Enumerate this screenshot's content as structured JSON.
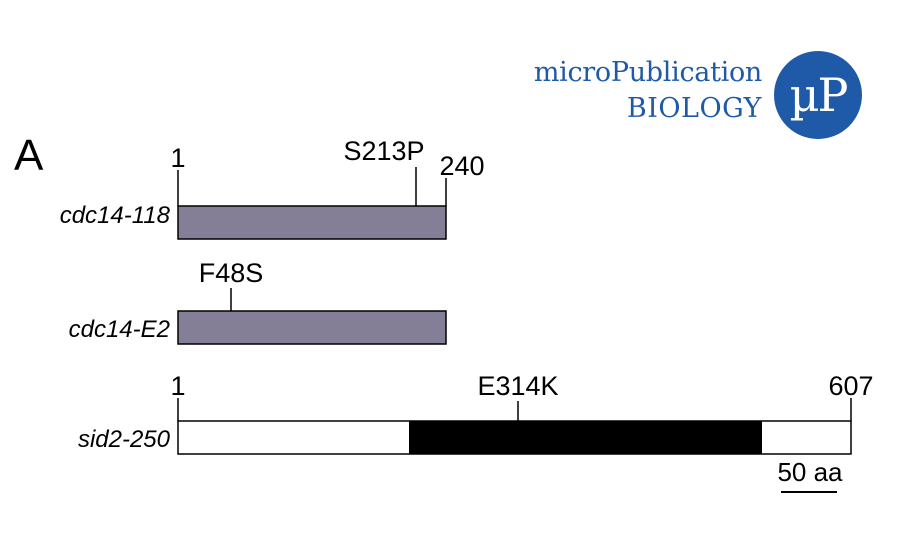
{
  "logo": {
    "line1": "microPublication",
    "line2": "BIOLOGY",
    "mark": "µP"
  },
  "panel_label": "A",
  "colors": {
    "cdc14_bar": "#857e97",
    "sid2_domain": "#000000",
    "outline": "#000000",
    "logo_blue": "#1f5aa8"
  },
  "proteins": [
    {
      "name": "cdc14-118",
      "length_label": "240",
      "start_label": "1",
      "mutation": "S213P"
    },
    {
      "name": "cdc14-E2",
      "mutation": "F48S"
    },
    {
      "name": "sid2-250",
      "length_label": "607",
      "start_label": "1",
      "mutation": "E314K"
    }
  ],
  "scale_bar": {
    "label": "50 aa"
  }
}
